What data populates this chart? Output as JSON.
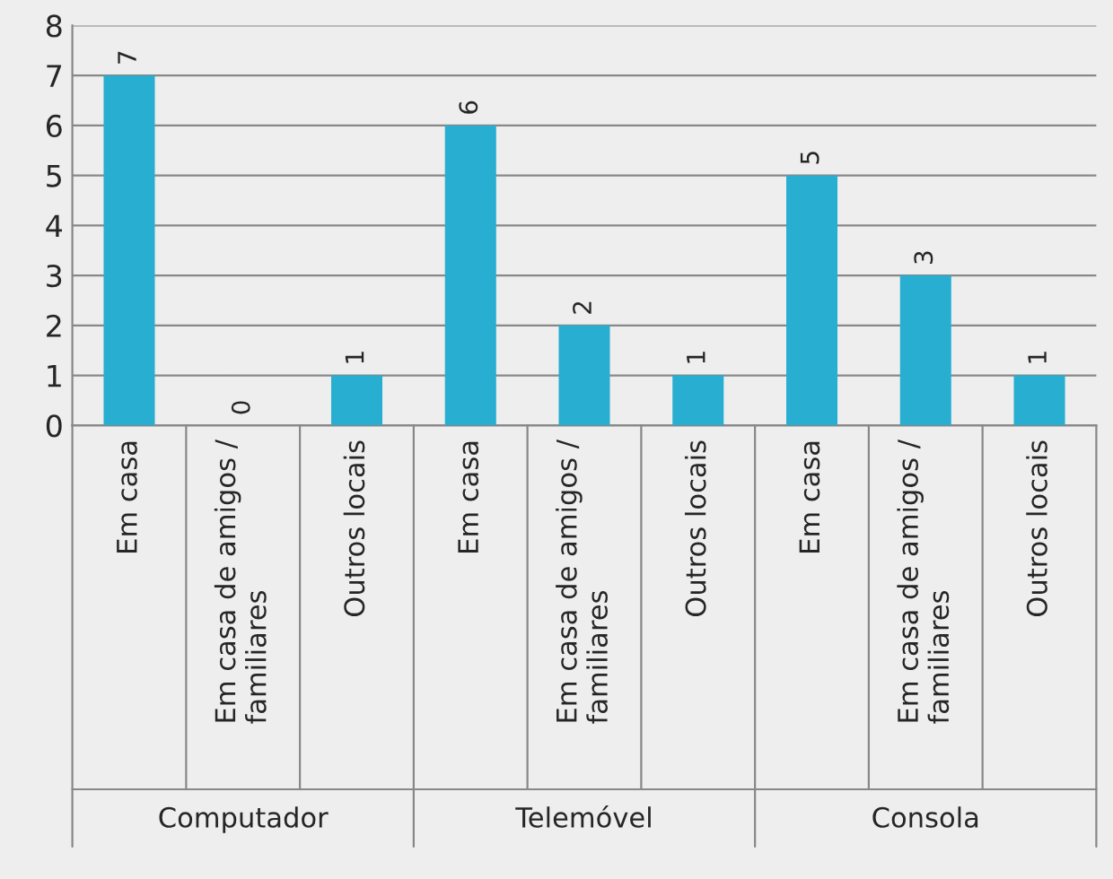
{
  "chart_data": {
    "type": "bar",
    "categories": [
      "Em casa",
      "Em casa de amigos /\nfamiliares",
      "Outros locais",
      "Em casa",
      "Em casa de amigos /\nfamiliares",
      "Outros locais",
      "Em casa",
      "Em casa de amigos /\nfamiliares",
      "Outros locais"
    ],
    "values": [
      7,
      0,
      1,
      6,
      2,
      1,
      5,
      3,
      1
    ],
    "color": "#27aed0",
    "ylim": [
      0,
      8
    ],
    "yticks": [
      0,
      1,
      2,
      3,
      4,
      5,
      6,
      7,
      8
    ],
    "grid": "y",
    "data_labels": true,
    "annotations": [
      "Computador",
      "Telemóvel",
      "Consola"
    ]
  }
}
